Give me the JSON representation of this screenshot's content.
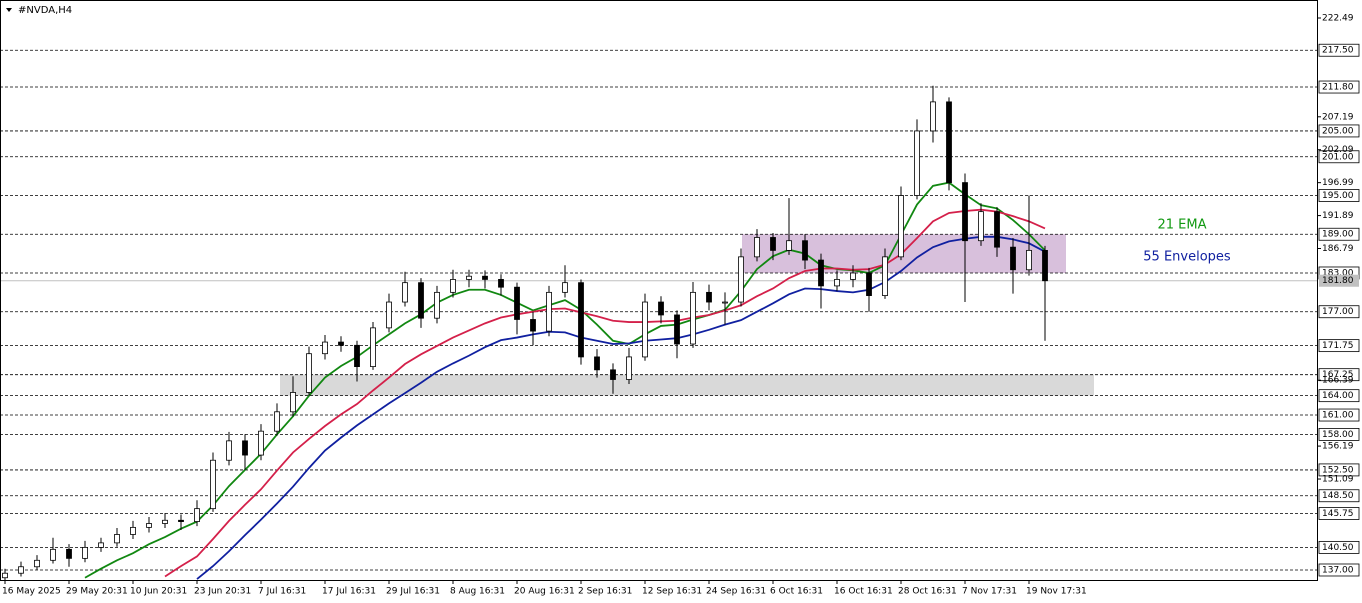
{
  "chart_data": {
    "type": "candlestick",
    "title": "#NVDA,H4",
    "categories": [
      "16 May 2025",
      null,
      null,
      null,
      "29 May 20:31",
      null,
      null,
      null,
      "10 Jun 20:31",
      null,
      null,
      null,
      "23 Jun 20:31",
      null,
      null,
      null,
      "7 Jul 16:31",
      null,
      null,
      null,
      "17 Jul 16:31",
      null,
      null,
      null,
      "29 Jul 16:31",
      null,
      null,
      null,
      "8 Aug 16:31",
      null,
      null,
      null,
      "20 Aug 16:31",
      null,
      null,
      null,
      "2 Sep 16:31",
      null,
      null,
      null,
      "12 Sep 16:31",
      null,
      null,
      null,
      "24 Sep 16:31",
      null,
      null,
      null,
      "6 Oct 16:31",
      null,
      null,
      null,
      "16 Oct 16:31",
      null,
      null,
      null,
      "28 Oct 16:31",
      null,
      null,
      null,
      "7 Nov 17:31",
      null,
      null,
      null,
      "19 Nov 17:31",
      null
    ],
    "open": [
      135.8,
      136.5,
      137.5,
      138.5,
      140.2,
      138.8,
      140.5,
      141.2,
      142.5,
      143.6,
      144.2,
      144.7,
      144.5,
      146.5,
      154,
      157,
      154.8,
      158.5,
      161.5,
      164.5,
      170.5,
      172.3,
      171.8,
      168.5,
      174.5,
      178.5,
      181.5,
      176,
      180,
      182,
      182.5,
      182,
      180.8,
      175.8,
      174,
      180,
      181.5,
      170,
      168,
      166.5,
      170,
      178.5,
      176.5,
      172,
      180,
      178.5,
      178.5,
      185.5,
      188.5,
      186.5,
      188,
      185,
      181,
      182,
      183,
      179.5,
      185.5,
      195,
      205,
      209.5,
      197,
      188,
      192.5,
      187,
      183.5,
      186.5
    ],
    "high": [
      137.2,
      138.3,
      139.3,
      142,
      141,
      141.5,
      142,
      143.5,
      144.6,
      145.2,
      145.8,
      145.6,
      147.8,
      155.2,
      158.4,
      158,
      159.6,
      162.8,
      167,
      171.6,
      173.4,
      173.2,
      172.5,
      175.4,
      179.8,
      183.2,
      182.2,
      181,
      183.5,
      183.5,
      183.4,
      182.8,
      181.5,
      177,
      181,
      184.2,
      182,
      171.2,
      169,
      171.4,
      179.8,
      179.4,
      177.2,
      181.6,
      181.2,
      180,
      186.8,
      189.8,
      189.2,
      194.6,
      189,
      186,
      183.4,
      184.2,
      183.8,
      186.8,
      196.4,
      206.8,
      212,
      210.2,
      198.4,
      193.8,
      193.2,
      188.4,
      195,
      187.2
    ],
    "low": [
      135.2,
      136,
      137,
      138,
      137.5,
      138.2,
      139.8,
      140.6,
      141.8,
      142.8,
      143.5,
      143.2,
      143.8,
      146,
      153.2,
      152.5,
      154,
      157.8,
      160.8,
      164,
      169.6,
      170.8,
      166.2,
      168,
      173.8,
      177.8,
      174.5,
      175.2,
      179.2,
      180.8,
      180.6,
      179.5,
      173.5,
      171.8,
      173.2,
      179.2,
      168.8,
      166.8,
      164.3,
      165.8,
      169.4,
      175.2,
      169.8,
      171.4,
      177.2,
      175,
      177.8,
      184.8,
      185,
      185.8,
      183.6,
      177.5,
      180.2,
      180.8,
      177,
      179,
      185,
      194.4,
      203.2,
      195.8,
      178.5,
      187.2,
      185.5,
      179.8,
      182.6,
      172.5
    ],
    "close": [
      136.5,
      137.5,
      138.5,
      140.2,
      138.8,
      140.5,
      141.2,
      142.5,
      143.6,
      144.2,
      144.7,
      144.5,
      146.5,
      154,
      157,
      154.8,
      158.5,
      161.5,
      164.5,
      170.5,
      172.3,
      171.8,
      168.5,
      174.5,
      178.5,
      181.5,
      176,
      180,
      182,
      182.5,
      182,
      180.8,
      175.8,
      174,
      180,
      181.5,
      170,
      168,
      166.5,
      170,
      178.5,
      176.5,
      172,
      180,
      178.5,
      178.5,
      185.5,
      188.5,
      186.5,
      188,
      185,
      181,
      182,
      183,
      179.5,
      185.5,
      195,
      205,
      209.5,
      197,
      188,
      192.5,
      187,
      183.5,
      186.5,
      181.8
    ],
    "lines": [
      {
        "color": "#118811",
        "values": [
          null,
          null,
          null,
          null,
          null,
          135.8,
          137.2,
          138.5,
          139.6,
          141,
          142.1,
          143.4,
          144.5,
          147,
          150,
          152.5,
          155,
          158,
          160.8,
          164,
          166.8,
          168.6,
          170,
          171.8,
          173.5,
          175.2,
          176.6,
          178.4,
          179.6,
          180.4,
          180.4,
          179.6,
          178.4,
          177.2,
          178,
          178.8,
          177.3,
          175,
          172.5,
          172,
          173.5,
          174.8,
          175,
          175.8,
          176.5,
          177.3,
          180.2,
          183.6,
          185.6,
          186.6,
          186,
          184.2,
          183.6,
          183.4,
          183,
          184.2,
          188.9,
          193.6,
          196.5,
          197,
          195.2,
          193.5,
          193,
          191.2,
          189,
          186.5
        ]
      },
      {
        "color": "#d4204a",
        "values": [
          null,
          null,
          null,
          null,
          null,
          null,
          null,
          null,
          null,
          null,
          136,
          137.6,
          139.1,
          141.8,
          144.6,
          147.1,
          149.5,
          152.4,
          155.2,
          157.3,
          159.3,
          161.1,
          162.7,
          164.8,
          166.8,
          168.9,
          170.4,
          171.7,
          173,
          174.1,
          175.2,
          176.1,
          176.6,
          177,
          177.4,
          177.5,
          176.9,
          176.3,
          175.6,
          175.4,
          175.4,
          175.5,
          175.6,
          176.1,
          176.5,
          177.2,
          178,
          179.4,
          180.6,
          182.2,
          183.3,
          183.7,
          183.7,
          183.5,
          183.6,
          184.3,
          185.9,
          188.4,
          191,
          192.3,
          192.6,
          192.8,
          192.5,
          191.8,
          191,
          189.9
        ]
      },
      {
        "color": "#1020a0",
        "values": [
          null,
          null,
          null,
          null,
          null,
          null,
          null,
          null,
          null,
          null,
          null,
          null,
          135.6,
          137.6,
          139.9,
          142.4,
          144.8,
          147.3,
          149.9,
          152.8,
          155.5,
          157.5,
          159.4,
          161.1,
          162.8,
          164.4,
          166,
          167.7,
          169,
          170.2,
          171.5,
          172.6,
          173,
          173.5,
          173.9,
          173.8,
          173,
          172.5,
          172,
          172.1,
          172.5,
          172.7,
          172.9,
          173.5,
          174.2,
          175,
          175.7,
          177,
          178.3,
          179.7,
          180.6,
          180.5,
          180.2,
          180,
          180.4,
          181.6,
          183.3,
          185.4,
          187,
          187.9,
          188.3,
          188.6,
          188.6,
          188.2,
          187.6,
          186.3
        ]
      }
    ],
    "zones": [
      {
        "low": 183,
        "high": 189,
        "color": "#d8c0dc"
      },
      {
        "low": 164,
        "high": 167.25,
        "color": "#d9d9d9"
      }
    ],
    "annotations": [
      {
        "text": "21 EMA",
        "color": "#119911"
      },
      {
        "text": "55 Envelopes",
        "color": "#1020a0"
      }
    ],
    "ylim": [
      135.45,
      224.97
    ],
    "yticks": [
      222.49,
      207.19,
      202.09,
      196.99,
      191.89,
      186.79,
      166.39,
      156.19,
      151.09
    ],
    "levels": [
      {
        "value": 217.5,
        "label": "217.50"
      },
      {
        "value": 211.8,
        "label": "211.80"
      },
      {
        "value": 205,
        "label": "205.00"
      },
      {
        "value": 201,
        "label": "201.00"
      },
      {
        "value": 195,
        "label": "195.00"
      },
      {
        "value": 189,
        "label": "189.00"
      },
      {
        "value": 183,
        "label": "183.00"
      },
      {
        "value": 177,
        "label": "177.00"
      },
      {
        "value": 171.75,
        "label": "171.75"
      },
      {
        "value": 167.25,
        "label": "167.25"
      },
      {
        "value": 164,
        "label": "164.00"
      },
      {
        "value": 161,
        "label": "161.00"
      },
      {
        "value": 158,
        "label": "158.00"
      },
      {
        "value": 152.5,
        "label": "152.50"
      },
      {
        "value": 148.5,
        "label": "148.50"
      },
      {
        "value": 145.75,
        "label": "145.75"
      },
      {
        "value": 140.5,
        "label": "140.50"
      },
      {
        "value": 137,
        "label": "137.00"
      }
    ],
    "current_price": {
      "value": 181.8,
      "label": "181.80"
    }
  }
}
